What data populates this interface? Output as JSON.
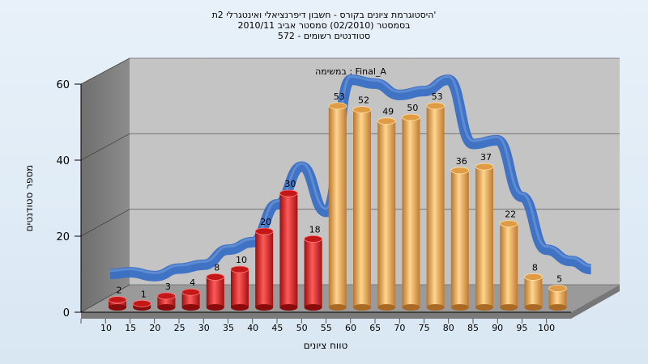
{
  "chart_data": {
    "type": "bar",
    "title_lines": [
      "היסטוגרמת ציונים בקורס - חשבון דיפרנציאלי ואינטגרלי 2ת'",
      "בסמסטר  (02/2010)  סמסטר אביב 2010/11",
      "572 - סטודנטים רשומים"
    ],
    "subtitle": "במשימה : Final_A",
    "xlabel": "טווח ציונים",
    "ylabel": "מספר סטודנטים",
    "ylim": [
      0,
      60
    ],
    "yticks": [
      "0",
      "20",
      "40",
      "60"
    ],
    "categories": [
      "10",
      "15",
      "20",
      "25",
      "30",
      "35",
      "40",
      "45",
      "50",
      "55",
      "60",
      "65",
      "70",
      "75",
      "80",
      "85",
      "90",
      "95",
      "100"
    ],
    "values": [
      2,
      1,
      3,
      4,
      8,
      10,
      20,
      30,
      18,
      53,
      52,
      49,
      50,
      53,
      36,
      37,
      22,
      8,
      5
    ],
    "series_colors": {
      "fail": "#dd1e1e",
      "pass": "#e5a24a",
      "curve": "#3a6fc4"
    },
    "fail_count": 9,
    "grid": true
  }
}
